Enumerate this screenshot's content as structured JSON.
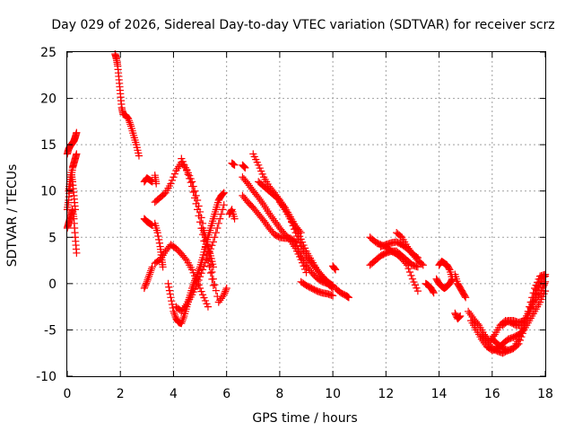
{
  "chart_data": {
    "type": "scatter",
    "title": "Day 029 of 2026, Sidereal Day-to-day VTEC variation (SDTVAR) for receiver scrz",
    "xlabel": "GPS time / hours",
    "ylabel": "SDTVAR / TECUs",
    "xlim": [
      0,
      18
    ],
    "ylim": [
      -10,
      25
    ],
    "grid": true,
    "marker": "plus",
    "marker_color": "#ff0000",
    "x_ticks": [
      {
        "value": 0,
        "label": "0"
      },
      {
        "value": 2,
        "label": "2"
      },
      {
        "value": 4,
        "label": "4"
      },
      {
        "value": 6,
        "label": "6"
      },
      {
        "value": 8,
        "label": "8"
      },
      {
        "value": 10,
        "label": "10"
      },
      {
        "value": 12,
        "label": "12"
      },
      {
        "value": 14,
        "label": "14"
      },
      {
        "value": 16,
        "label": "16"
      },
      {
        "value": 18,
        "label": "18"
      }
    ],
    "y_ticks": [
      {
        "value": -10,
        "label": "-10"
      },
      {
        "value": -5,
        "label": "-5"
      },
      {
        "value": 0,
        "label": "0"
      },
      {
        "value": 5,
        "label": "5"
      },
      {
        "value": 10,
        "label": "10"
      },
      {
        "value": 15,
        "label": "15"
      },
      {
        "value": 20,
        "label": "20"
      },
      {
        "value": 25,
        "label": "25"
      }
    ],
    "tracks": [
      {
        "x": [
          0.0,
          0.05,
          0.1,
          0.15,
          0.2,
          0.25,
          0.3,
          0.35
        ],
        "y": [
          14,
          14.5,
          14.8,
          15,
          15.2,
          15.4,
          15.8,
          16.3
        ]
      },
      {
        "x": [
          0.0,
          0.05,
          0.1,
          0.15,
          0.2,
          0.25,
          0.3,
          0.35
        ],
        "y": [
          8,
          9,
          10.5,
          11.5,
          12.5,
          13,
          13.5,
          14
        ]
      },
      {
        "x": [
          0.0,
          0.05,
          0.1,
          0.15,
          0.2,
          0.25,
          0.3,
          0.35
        ],
        "y": [
          6,
          6.5,
          7,
          7.5,
          8,
          7,
          5,
          3.3
        ]
      },
      {
        "x": [
          0.05,
          0.1,
          0.15,
          0.2,
          0.25,
          0.3
        ],
        "y": [
          10,
          11,
          12,
          11,
          9.5,
          8
        ]
      },
      {
        "x": [
          1.8,
          1.85,
          1.9,
          1.95,
          2.0,
          2.05,
          2.1,
          2.2,
          2.3,
          2.4,
          2.5,
          2.6,
          2.7
        ],
        "y": [
          24.8,
          24.3,
          23.5,
          22,
          20.5,
          19,
          18.3,
          18.2,
          17.8,
          17,
          16,
          15,
          13.8
        ]
      },
      {
        "x": [
          2.9,
          3.0,
          3.1,
          3.2
        ],
        "y": [
          11,
          11.4,
          11.2,
          11
        ]
      },
      {
        "x": [
          2.9,
          3.0,
          3.1,
          3.2
        ],
        "y": [
          7,
          6.7,
          6.5,
          6.3
        ]
      },
      {
        "x": [
          2.9,
          3.0,
          3.1,
          3.2
        ],
        "y": [
          -0.5,
          0.2,
          1,
          1.8
        ]
      },
      {
        "x": [
          3.3,
          3.35
        ],
        "y": [
          11.7,
          10.8
        ]
      },
      {
        "x": [
          3.3,
          3.5,
          3.7,
          3.9,
          4.1,
          4.3,
          4.5,
          4.7,
          4.9,
          5.1,
          5.3,
          5.5,
          5.7,
          5.9,
          6.0
        ],
        "y": [
          8.8,
          9.3,
          9.8,
          10.8,
          12.2,
          13.1,
          12.3,
          11,
          9,
          6.5,
          3.5,
          0.5,
          -2,
          -1.2,
          -0.5
        ]
      },
      {
        "x": [
          3.3,
          3.5,
          3.7,
          3.9,
          4.1,
          4.3,
          4.5,
          4.7,
          4.9,
          5.1,
          5.3
        ],
        "y": [
          2.2,
          2.6,
          3.5,
          4.2,
          3.8,
          3.2,
          2.5,
          1.5,
          0.2,
          -1.2,
          -2.5
        ]
      },
      {
        "x": [
          3.3,
          3.4,
          3.5,
          3.55,
          3.6
        ],
        "y": [
          6.5,
          5.5,
          4,
          2.8,
          1.8
        ]
      },
      {
        "x": [
          3.8,
          3.9,
          4.0,
          4.1,
          4.2,
          4.3,
          4.4,
          4.5,
          4.6,
          4.7,
          4.8,
          4.9,
          5.0,
          5.1,
          5.2,
          5.3,
          5.4,
          5.5,
          5.6,
          5.7,
          5.8,
          5.9
        ],
        "y": [
          0,
          -1.5,
          -3,
          -3.8,
          -4.2,
          -4.3,
          -3.5,
          -2.5,
          -1.5,
          -0.5,
          0.3,
          1,
          1.8,
          2.8,
          4,
          5,
          6,
          7,
          8,
          9,
          9.5,
          9.8
        ]
      },
      {
        "x": [
          4.1,
          4.3,
          4.5,
          4.7,
          4.9,
          5.1,
          5.3,
          5.5,
          5.7,
          5.9
        ],
        "y": [
          -2.5,
          -3,
          -2.2,
          -1.2,
          0,
          1.5,
          3,
          4.5,
          6.5,
          8.5
        ]
      },
      {
        "x": [
          4.3,
          4.5,
          4.7,
          4.9,
          5.1,
          5.3,
          5.5
        ],
        "y": [
          13.5,
          12.2,
          10.5,
          8,
          5.3,
          2.5,
          -0.2
        ]
      },
      {
        "x": [
          5.1,
          5.2,
          5.3,
          5.4,
          5.5
        ],
        "y": [
          6,
          5,
          4,
          3,
          1.8
        ]
      },
      {
        "x": [
          6.1,
          6.2,
          6.3
        ],
        "y": [
          7.5,
          8,
          7
        ]
      },
      {
        "x": [
          6.2,
          6.3
        ],
        "y": [
          13,
          12.8
        ]
      },
      {
        "x": [
          6.6,
          6.7
        ],
        "y": [
          12.8,
          12.5
        ]
      },
      {
        "x": [
          6.6,
          6.8,
          7.0,
          7.2,
          7.4,
          7.6,
          7.8,
          8.0,
          8.2,
          8.4,
          8.6,
          8.8,
          9.0
        ],
        "y": [
          11.5,
          10.8,
          10,
          9.3,
          8.5,
          7.6,
          6.8,
          6,
          5.3,
          4.7,
          3.8,
          2.6,
          1.2
        ]
      },
      {
        "x": [
          6.6,
          6.8,
          7.0,
          7.2,
          7.4,
          7.6,
          7.8,
          8.0,
          8.2,
          8.4,
          8.6
        ],
        "y": [
          9.5,
          8.8,
          8.2,
          7.5,
          6.8,
          6,
          5.3,
          5,
          4.9,
          4.9,
          4.5
        ]
      },
      {
        "x": [
          7.0,
          7.2,
          7.4,
          7.6,
          7.8,
          8.0,
          8.2,
          8.4,
          8.6,
          8.8,
          9.0,
          9.2,
          9.4,
          9.6,
          9.8,
          10.0
        ],
        "y": [
          14,
          12.8,
          11.5,
          10.5,
          9.8,
          9,
          8,
          7,
          5.5,
          4,
          3,
          2.2,
          1.5,
          0.8,
          0,
          -0.5
        ]
      },
      {
        "x": [
          7.2,
          7.4,
          7.6,
          7.8,
          8.0,
          8.2,
          8.4,
          8.6,
          8.8
        ],
        "y": [
          11,
          10.5,
          10,
          9.5,
          9,
          8.2,
          7.2,
          6.2,
          5.5
        ]
      },
      {
        "x": [
          8.0,
          8.2,
          8.4,
          8.6,
          8.8,
          9.0,
          9.2,
          9.4,
          9.6,
          9.8,
          10.0
        ],
        "y": [
          8.8,
          8,
          7,
          6,
          4.8,
          3.5,
          2.5,
          1.5,
          0.8,
          0.2,
          -0.2
        ]
      },
      {
        "x": [
          8.6,
          8.8,
          9.0,
          9.2,
          9.4,
          9.6,
          9.8,
          10.0
        ],
        "y": [
          4.5,
          3,
          2,
          1.2,
          0.6,
          0.2,
          0,
          -0.3
        ]
      },
      {
        "x": [
          8.8,
          9.0,
          9.2,
          9.4,
          9.6,
          9.8,
          10.0
        ],
        "y": [
          0.2,
          -0.2,
          -0.5,
          -0.8,
          -1,
          -1.1,
          -1.3
        ]
      },
      {
        "x": [
          10.1,
          10.3,
          10.5,
          10.6
        ],
        "y": [
          -0.5,
          -1,
          -1.3,
          -1.5
        ]
      },
      {
        "x": [
          10.0,
          10.1
        ],
        "y": [
          1.9,
          1.5
        ]
      },
      {
        "x": [
          11.4,
          11.6,
          11.8,
          12.0,
          12.2,
          12.4,
          12.6,
          12.8,
          13.0,
          13.2
        ],
        "y": [
          5,
          4.5,
          4.2,
          4,
          3.5,
          3.2,
          2.7,
          2,
          0.5,
          -0.8
        ]
      },
      {
        "x": [
          11.4,
          11.6,
          11.8,
          12.0,
          12.2,
          12.4,
          12.6,
          12.8,
          13.0,
          13.2
        ],
        "y": [
          2,
          2.5,
          3,
          3.3,
          3.5,
          3.5,
          3,
          2.5,
          2,
          1.8
        ]
      },
      {
        "x": [
          11.8,
          12.0,
          12.2,
          12.4,
          12.6,
          12.8,
          13.0,
          13.2
        ],
        "y": [
          4,
          4.2,
          4.4,
          4.5,
          4.2,
          3.8,
          3.2,
          2.8
        ]
      },
      {
        "x": [
          12.4,
          12.6,
          12.8,
          13.0,
          13.2,
          13.4
        ],
        "y": [
          5.5,
          5,
          4,
          3.2,
          2.5,
          2
        ]
      },
      {
        "x": [
          13.5,
          13.6,
          13.7,
          13.8
        ],
        "y": [
          0,
          -0.2,
          -0.5,
          -1
        ]
      },
      {
        "x": [
          13.9,
          14.0,
          14.1,
          14.2,
          14.3,
          14.4,
          14.5
        ],
        "y": [
          0.5,
          0,
          -0.3,
          -0.5,
          -0.3,
          0,
          0.5
        ]
      },
      {
        "x": [
          14.0,
          14.1,
          14.2,
          14.3,
          14.4,
          14.5
        ],
        "y": [
          2,
          2.4,
          2.2,
          2,
          1.5,
          0.5
        ]
      },
      {
        "x": [
          14.6,
          14.7,
          14.8,
          14.9,
          15.0
        ],
        "y": [
          1,
          0,
          -0.5,
          -1,
          -1.5
        ]
      },
      {
        "x": [
          14.6,
          14.7,
          14.8
        ],
        "y": [
          -3.2,
          -3.8,
          -3.5
        ]
      },
      {
        "x": [
          15.1,
          15.3,
          15.5,
          15.7,
          15.9,
          16.1,
          16.3,
          16.5,
          16.7,
          16.9,
          17.1,
          17.3,
          17.5,
          17.7,
          17.9,
          18.0
        ],
        "y": [
          -3,
          -3.8,
          -4.5,
          -5.5,
          -6.2,
          -5.5,
          -4.5,
          -4,
          -4.2,
          -4.5,
          -4.5,
          -3.5,
          -2.5,
          -1.5,
          -0.5,
          0.2
        ]
      },
      {
        "x": [
          15.2,
          15.4,
          15.6,
          15.8,
          16.0,
          16.2,
          16.4,
          16.6,
          16.8,
          17.0,
          17.2,
          17.4,
          17.6,
          17.8,
          18.0
        ],
        "y": [
          -4,
          -5,
          -6,
          -6.8,
          -7.2,
          -7,
          -6.5,
          -6,
          -5.8,
          -5.5,
          -5,
          -4,
          -3,
          -2,
          -0.8
        ]
      },
      {
        "x": [
          15.6,
          15.8,
          16.0,
          16.2,
          16.4,
          16.6,
          16.8,
          17.0,
          17.2,
          17.4,
          17.6,
          17.8,
          18.0
        ],
        "y": [
          -5.5,
          -6.2,
          -7,
          -7.3,
          -7.5,
          -7.2,
          -7,
          -6.5,
          -5,
          -3,
          -1,
          0.5,
          0.8
        ]
      },
      {
        "x": [
          16.0,
          16.2,
          16.4,
          16.6,
          16.8,
          17.0,
          17.2,
          17.4,
          17.6,
          17.8,
          18.0
        ],
        "y": [
          -6,
          -6.5,
          -7,
          -7.2,
          -7,
          -6,
          -4.5,
          -2.5,
          -0.5,
          0.8,
          1
        ]
      },
      {
        "x": [
          16.4,
          16.6,
          16.8,
          17.0,
          17.2,
          17.4,
          17.6,
          17.8,
          18.0
        ],
        "y": [
          -4.5,
          -4,
          -4,
          -4.2,
          -4,
          -3,
          -1.5,
          0,
          1
        ]
      }
    ]
  }
}
